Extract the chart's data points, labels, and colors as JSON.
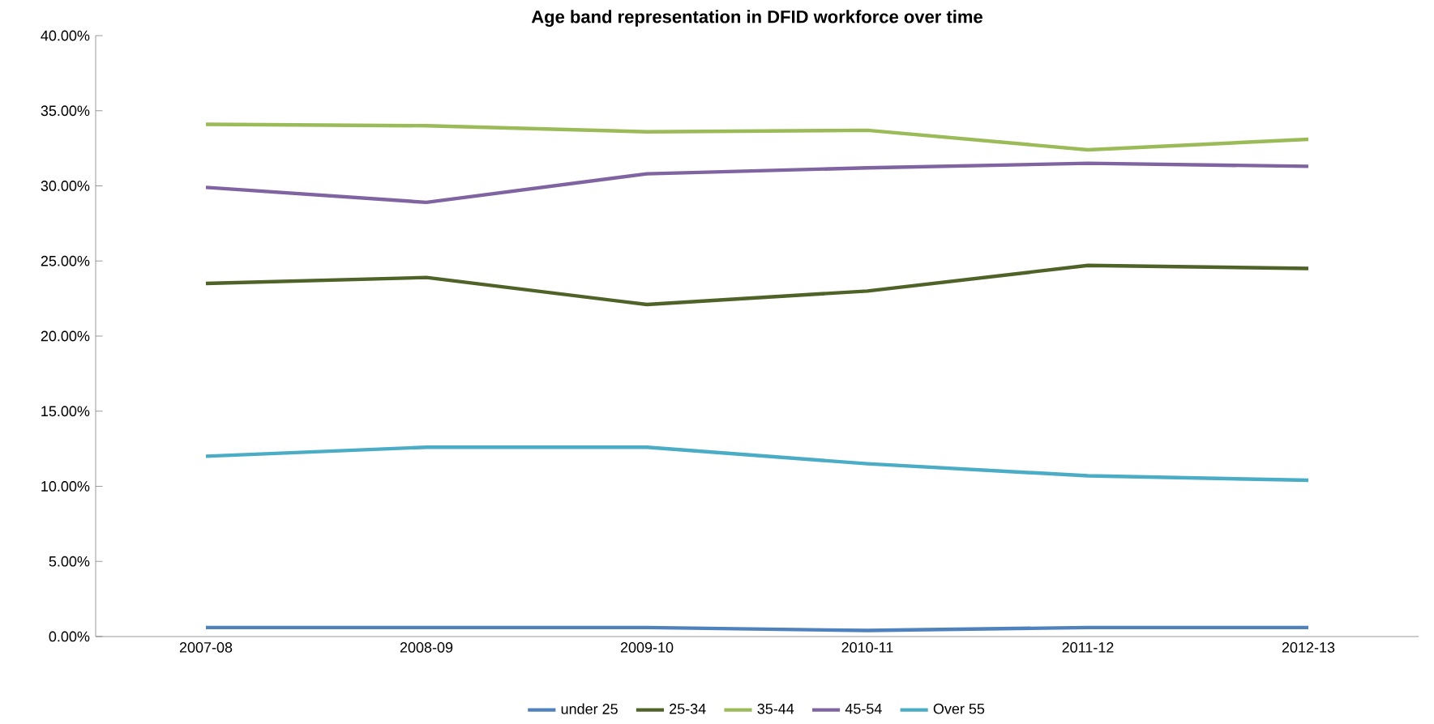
{
  "chart_data": {
    "type": "line",
    "title": "Age band representation in DFID workforce over time",
    "categories": [
      "2007-08",
      "2008-09",
      "2009-10",
      "2010-11",
      "2011-12",
      "2012-13"
    ],
    "series": [
      {
        "name": "under 25",
        "color": "#4f81bd",
        "values": [
          0.6,
          0.6,
          0.6,
          0.4,
          0.6,
          0.6
        ]
      },
      {
        "name": "25-34",
        "color": "#4f6228",
        "values": [
          23.5,
          23.9,
          22.1,
          23.0,
          24.7,
          24.5
        ]
      },
      {
        "name": "35-44",
        "color": "#9bbb59",
        "values": [
          34.1,
          34.0,
          33.6,
          33.7,
          32.4,
          33.1
        ]
      },
      {
        "name": "45-54",
        "color": "#8064a2",
        "values": [
          29.9,
          28.9,
          30.8,
          31.2,
          31.5,
          31.3
        ]
      },
      {
        "name": "Over 55",
        "color": "#4bacc6",
        "values": [
          12.0,
          12.6,
          12.6,
          11.5,
          10.7,
          10.4
        ]
      }
    ],
    "ylim": [
      0,
      40
    ],
    "yticks": [
      {
        "value": 0,
        "label": "0.00%"
      },
      {
        "value": 5,
        "label": "5.00%"
      },
      {
        "value": 10,
        "label": "10.00%"
      },
      {
        "value": 15,
        "label": "15.00%"
      },
      {
        "value": 20,
        "label": "20.00%"
      },
      {
        "value": 25,
        "label": "25.00%"
      },
      {
        "value": 30,
        "label": "30.00%"
      },
      {
        "value": 35,
        "label": "35.00%"
      },
      {
        "value": 40,
        "label": "40.00%"
      }
    ],
    "grid": false,
    "legend": "bottom",
    "marker": "none",
    "line_style": "solid"
  }
}
